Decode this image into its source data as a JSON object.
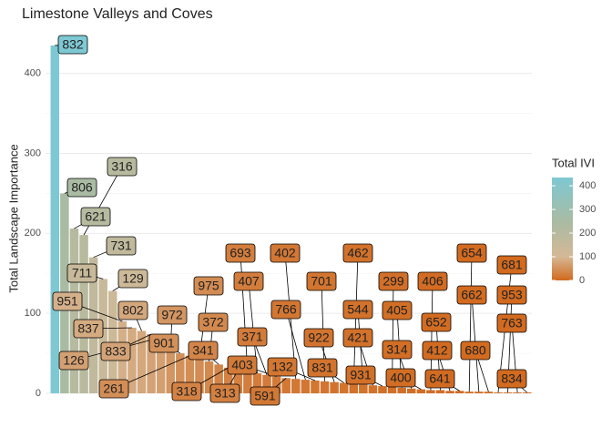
{
  "chart_data": {
    "type": "bar",
    "title": "Limestone Valleys and Coves",
    "y_label": "Total Landscape Importance",
    "legend_title": "Total IVI",
    "categories": [
      "832",
      "806",
      "621",
      "316",
      "731",
      "711",
      "129",
      "951",
      "837",
      "802",
      "833",
      "126",
      "972",
      "901",
      "261",
      "975",
      "372",
      "341",
      "318",
      "313",
      "693",
      "407",
      "371",
      "403",
      "591",
      "402",
      "766",
      "132",
      "701",
      "922",
      "831",
      "462",
      "544",
      "421",
      "931",
      "299",
      "405",
      "314",
      "400",
      "406",
      "652",
      "412",
      "641",
      "654",
      "662",
      "680",
      "681",
      "953",
      "763",
      "834"
    ],
    "values": [
      435,
      250,
      206,
      198,
      170,
      143,
      128,
      90,
      82,
      78,
      74,
      70,
      56,
      50,
      47,
      44,
      40,
      36,
      32,
      29,
      27,
      25,
      23,
      21,
      19,
      18,
      17,
      16,
      15,
      14,
      13,
      12,
      11,
      10,
      9,
      8,
      7,
      6,
      5,
      4,
      4,
      3,
      3,
      2,
      2,
      2,
      1,
      1,
      1,
      1
    ],
    "ylim": [
      0,
      452
    ],
    "yticks": [
      0,
      100,
      200,
      300,
      400
    ],
    "grid": true,
    "colorscale": [
      {
        "value": 0,
        "color": "#d2691e"
      },
      {
        "value": 100,
        "color": "#d4b896"
      },
      {
        "value": 250,
        "color": "#a9bba3"
      },
      {
        "value": 435,
        "color": "#7ec8d3"
      }
    ],
    "legend_ticks": [
      0,
      100,
      200,
      300,
      400
    ]
  }
}
